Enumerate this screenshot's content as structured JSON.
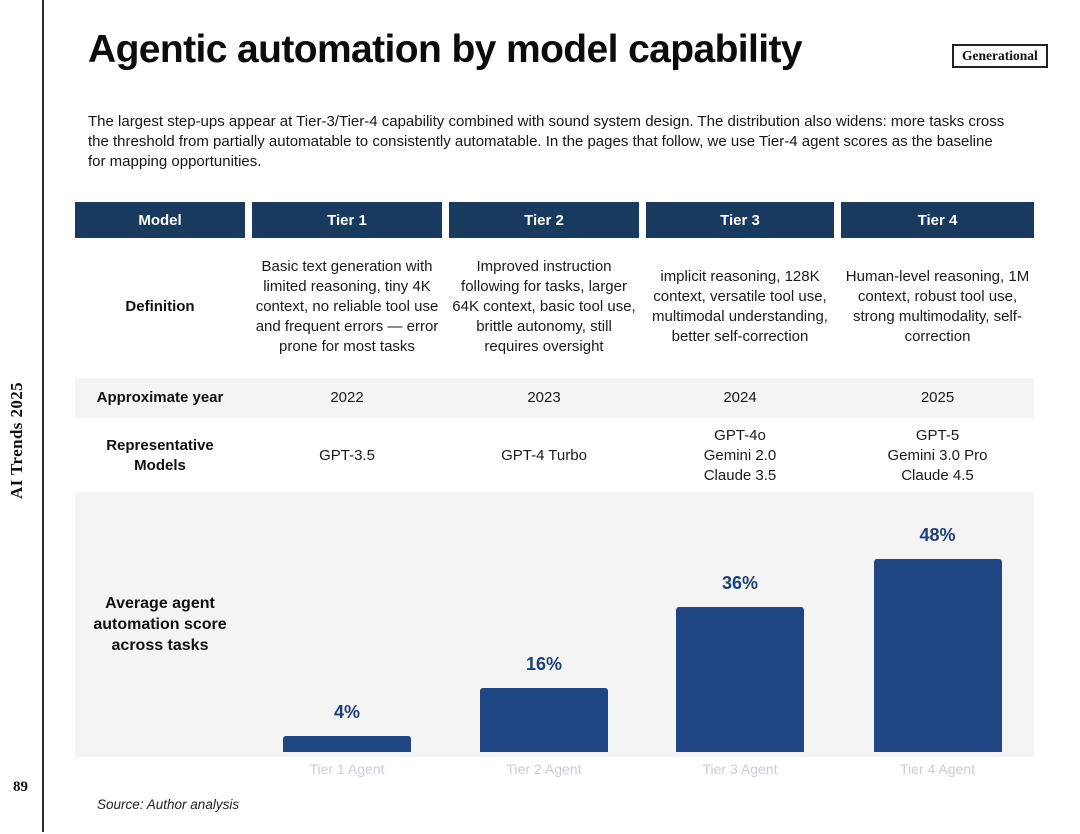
{
  "page": {
    "side_label": "AI Trends 2025",
    "page_number": "89",
    "source": "Source: Author analysis"
  },
  "header": {
    "title": "Agentic automation by model capability",
    "badge": "Generational"
  },
  "intro": "The largest step-ups appear at Tier-3/Tier-4 capability combined with sound system design. The distribution also widens: more tasks cross the threshold from partially automatable to consistently automatable. In the pages that follow, we use Tier-4 agent scores as the baseline for mapping opportunities.",
  "table": {
    "columns": [
      "Model",
      "Tier 1",
      "Tier 2",
      "Tier 3",
      "Tier 4"
    ],
    "definition": {
      "label": "Definition",
      "cells": [
        "Basic text generation with limited reasoning, tiny 4K context, no reliable tool use and frequent errors — error prone for most tasks",
        "Improved instruction following for tasks, larger 64K context, basic tool use, brittle autonomy, still requires oversight",
        "implicit reasoning, 128K context, versatile tool use, multimodal understanding, better self-correction",
        "Human-level reasoning, 1M context, robust tool use, strong multimodality, self-correction"
      ]
    },
    "year": {
      "label": "Approximate year",
      "cells": [
        "2022",
        "2023",
        "2024",
        "2025"
      ]
    },
    "models": {
      "label": "Representative Models",
      "cells": [
        "GPT-3.5",
        "GPT-4 Turbo",
        "GPT-4o\nGemini 2.0\nClaude 3.5",
        "GPT-5\nGemini 3.0 Pro\nClaude 4.5"
      ]
    }
  },
  "chart_data": {
    "type": "bar",
    "title": "Average agent automation score across tasks",
    "categories": [
      "Tier 1 Agent",
      "Tier 2 Agent",
      "Tier 3 Agent",
      "Tier 4 Agent"
    ],
    "values": [
      4,
      16,
      36,
      48
    ],
    "value_labels": [
      "4%",
      "16%",
      "36%",
      "48%"
    ],
    "xlabel": "",
    "ylabel": "",
    "ylim": [
      0,
      50
    ],
    "grid": false,
    "legend": "none",
    "bar_color": "#1F4583",
    "value_label_color": "#1D4076",
    "category_label_color": "#C9CDD5"
  },
  "colors": {
    "header_navy": "#173A5E",
    "band_gray": "#F4F4F5",
    "accent_blue": "#1F4583"
  }
}
